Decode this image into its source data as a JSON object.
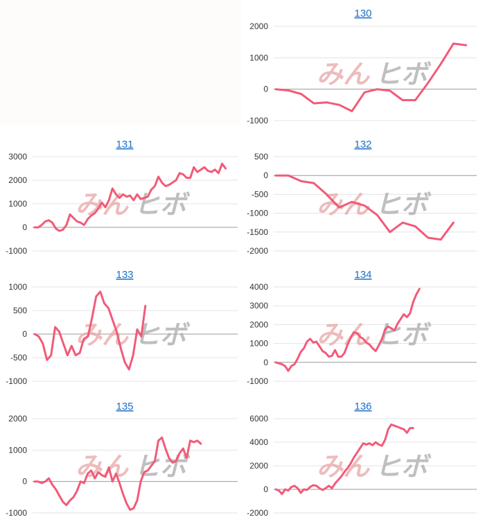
{
  "colors": {
    "line": "#f25a78",
    "title": "#1a6fc9",
    "watermark_left": "#e8a6a6",
    "watermark_right": "#aaaaaa"
  },
  "watermark": {
    "left": "みん",
    "right": "ヒボ"
  },
  "chart_data": [
    {
      "type": "line",
      "title": "130",
      "ylim": [
        -1000,
        2000
      ],
      "yticks": [
        -1000,
        0,
        1000,
        2000
      ],
      "grid": true,
      "series": [
        {
          "values": [
            0,
            -40,
            -150,
            -450,
            -420,
            -500,
            -700,
            -100,
            0,
            -50,
            -350,
            -350,
            200,
            800,
            1450,
            1400
          ]
        }
      ]
    },
    {
      "type": "line",
      "title": "131",
      "ylim": [
        -1000,
        3000
      ],
      "yticks": [
        -1000,
        0,
        1000,
        2000,
        3000
      ],
      "grid": true,
      "series": [
        {
          "values": [
            0,
            0,
            100,
            250,
            300,
            200,
            -50,
            -150,
            -100,
            100,
            550,
            400,
            250,
            200,
            100,
            350,
            500,
            600,
            800,
            1050,
            850,
            1150,
            1650,
            1400,
            1250,
            1400,
            1300,
            1350,
            1150,
            1400,
            1200,
            1250,
            1300,
            1600,
            1750,
            2150,
            1900,
            1750,
            1800,
            1900,
            2000,
            2300,
            2250,
            2100,
            2100,
            2550,
            2350,
            2450,
            2550,
            2400,
            2350,
            2450,
            2300,
            2700,
            2500
          ]
        }
      ]
    },
    {
      "type": "line",
      "title": "132",
      "ylim": [
        -2000,
        500
      ],
      "yticks": [
        -2000,
        -1500,
        -1000,
        -500,
        0,
        500
      ],
      "grid": true,
      "series": [
        {
          "values": [
            0,
            0,
            -150,
            -200,
            -500,
            -850,
            -700,
            -800,
            -1050,
            -1500,
            -1250,
            -1350,
            -1650,
            -1700,
            -1250
          ]
        }
      ]
    },
    {
      "type": "line",
      "title": "133",
      "ylim": [
        -1000,
        1000
      ],
      "yticks": [
        -1000,
        -500,
        0,
        500,
        1000
      ],
      "grid": true,
      "series": [
        {
          "values": [
            0,
            -50,
            -200,
            -550,
            -450,
            150,
            50,
            -200,
            -450,
            -250,
            -450,
            -400,
            -100,
            -50,
            350,
            800,
            900,
            650,
            550,
            300,
            50,
            -300,
            -600,
            -750,
            -450,
            100,
            -50,
            600
          ]
        }
      ]
    },
    {
      "type": "line",
      "title": "134",
      "ylim": [
        -1000,
        4000
      ],
      "yticks": [
        -1000,
        0,
        1000,
        2000,
        3000,
        4000
      ],
      "grid": true,
      "series": [
        {
          "values": [
            0,
            -50,
            -100,
            -200,
            -450,
            -200,
            -100,
            200,
            550,
            750,
            1100,
            1250,
            1050,
            1100,
            850,
            600,
            500,
            300,
            350,
            650,
            300,
            300,
            500,
            950,
            1300,
            1600,
            1550,
            1350,
            1250,
            1050,
            950,
            750,
            600,
            900,
            1250,
            1750,
            1900,
            1800,
            1700,
            2050,
            2300,
            2550,
            2400,
            2600,
            3200,
            3600,
            3900
          ]
        }
      ]
    },
    {
      "type": "line",
      "title": "135",
      "ylim": [
        -1000,
        2000
      ],
      "yticks": [
        -1000,
        0,
        1000,
        2000
      ],
      "grid": true,
      "series": [
        {
          "values": [
            0,
            0,
            -50,
            0,
            100,
            -100,
            -250,
            -450,
            -650,
            -750,
            -600,
            -500,
            -300,
            0,
            -50,
            250,
            350,
            100,
            300,
            200,
            150,
            450,
            0,
            250,
            -50,
            -400,
            -700,
            -900,
            -850,
            -600,
            0,
            300,
            350,
            500,
            650,
            1300,
            1400,
            1050,
            750,
            600,
            650,
            900,
            1050,
            750,
            1300,
            1250,
            1300,
            1200
          ]
        }
      ]
    },
    {
      "type": "line",
      "title": "136",
      "ylim": [
        -2000,
        6000
      ],
      "yticks": [
        -2000,
        0,
        2000,
        4000,
        6000
      ],
      "grid": true,
      "series": [
        {
          "values": [
            0,
            -100,
            -400,
            0,
            -100,
            200,
            300,
            100,
            -300,
            0,
            -50,
            200,
            350,
            300,
            100,
            -50,
            100,
            300,
            100,
            500,
            800,
            1100,
            1500,
            1800,
            2200,
            2700,
            3100,
            3500,
            3900,
            3800,
            3900,
            3750,
            4000,
            3800,
            3700,
            4200,
            5100,
            5500,
            5400,
            5300,
            5200,
            5100,
            4800,
            5200,
            5200
          ]
        }
      ]
    }
  ]
}
